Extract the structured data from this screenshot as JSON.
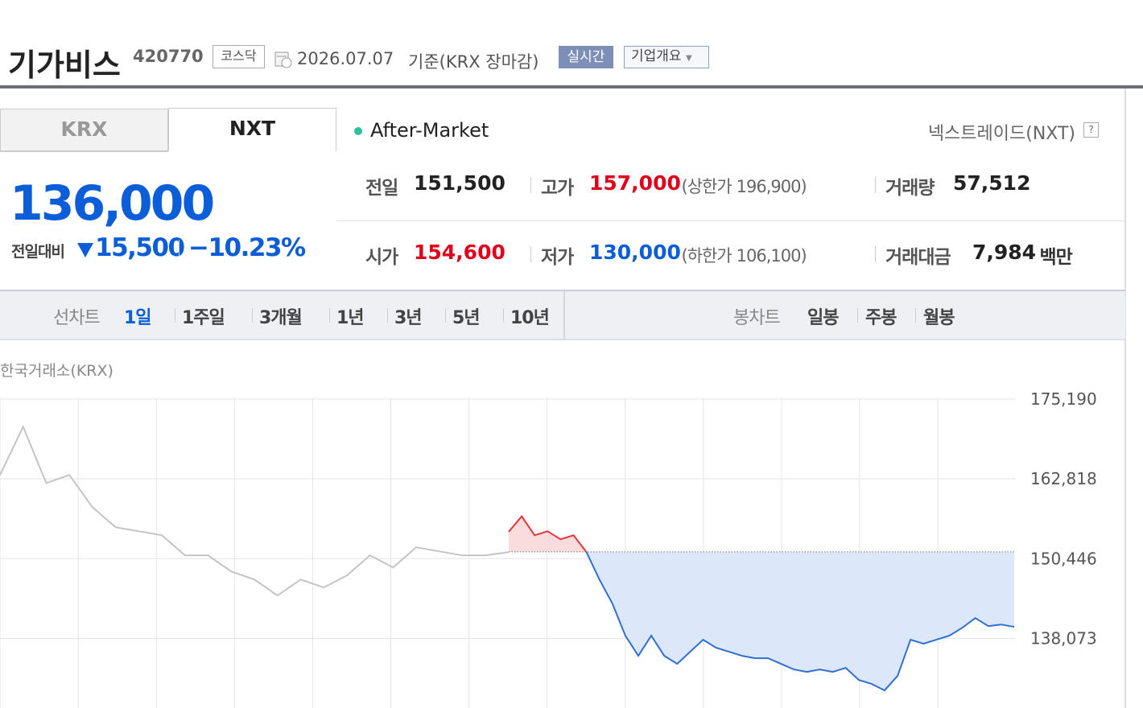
{
  "header": {
    "name": "기가비스",
    "code": "420770",
    "market": "코스닥",
    "date": "2026.07.07",
    "basis": "기준(KRX 장마감)",
    "realtime": "실시간",
    "company": "기업개요"
  },
  "tabs": [
    "KRX",
    "NXT"
  ],
  "status": "After-Market",
  "exchange": "넥스트레이드(NXT)",
  "price": {
    "current": "136,000",
    "change_label": "전일대비",
    "change": "15,500",
    "rate": "−10.23%"
  },
  "stats": [
    [
      {
        "label": "전일",
        "value": "151,500"
      },
      {
        "label": "고가",
        "value": "157,000",
        "limit_label": "상한가",
        "limit": "196,900"
      },
      {
        "label": "거래량",
        "value": "57,512"
      }
    ],
    [
      {
        "label": "시가",
        "value": "154,600"
      },
      {
        "label": "저가",
        "value": "130,000",
        "limit_label": "하한가",
        "limit": "106,100"
      },
      {
        "label": "거래대금",
        "value": "7,984",
        "unit": "백만"
      }
    ]
  ],
  "chart_tabs": {
    "line_label": "선차트",
    "periods": [
      "1일",
      "1주일",
      "3개월",
      "1년",
      "3년",
      "5년",
      "10년"
    ],
    "candle_label": "봉차트",
    "candles": [
      "일봉",
      "주봉",
      "월봉"
    ]
  },
  "chart": {
    "type": "line",
    "source": "한국거래소(KRX)",
    "ylim": [
      127271,
      175190
    ],
    "yticks": [
      {
        "value": 175190,
        "label": "175,190"
      },
      {
        "value": 162818,
        "label": "162,818"
      },
      {
        "value": 150446,
        "label": "150,446"
      },
      {
        "value": 138073,
        "label": "138,073"
      }
    ],
    "base": 151500,
    "grid": true,
    "series": [
      {
        "color": "#c4c4c4",
        "values": [
          163404,
          170880,
          162158,
          163404,
          158420,
          155305,
          154682,
          154059,
          150944,
          150944,
          148452,
          147206,
          144714,
          147206,
          145960,
          147829,
          150944,
          149075,
          152190,
          151567,
          150944,
          150944,
          151443
        ]
      },
      {
        "color": "#2f6fd6",
        "up_color": "#e8323c",
        "fill": "#dce8fa",
        "up_fill": "#fbdcdc",
        "values": [
          154600,
          157000,
          154059,
          154682,
          153436,
          154059,
          151443,
          147206,
          143468,
          138484,
          135369,
          138484,
          135369,
          134123,
          135992,
          137861,
          136615,
          135992,
          135369,
          134996,
          134996,
          134123,
          133251,
          132877,
          133251,
          132877,
          133500,
          131631,
          131008,
          130000,
          132254,
          137861,
          137238,
          137861,
          138484,
          139730,
          141226,
          139980,
          140229,
          139855
        ]
      }
    ]
  }
}
